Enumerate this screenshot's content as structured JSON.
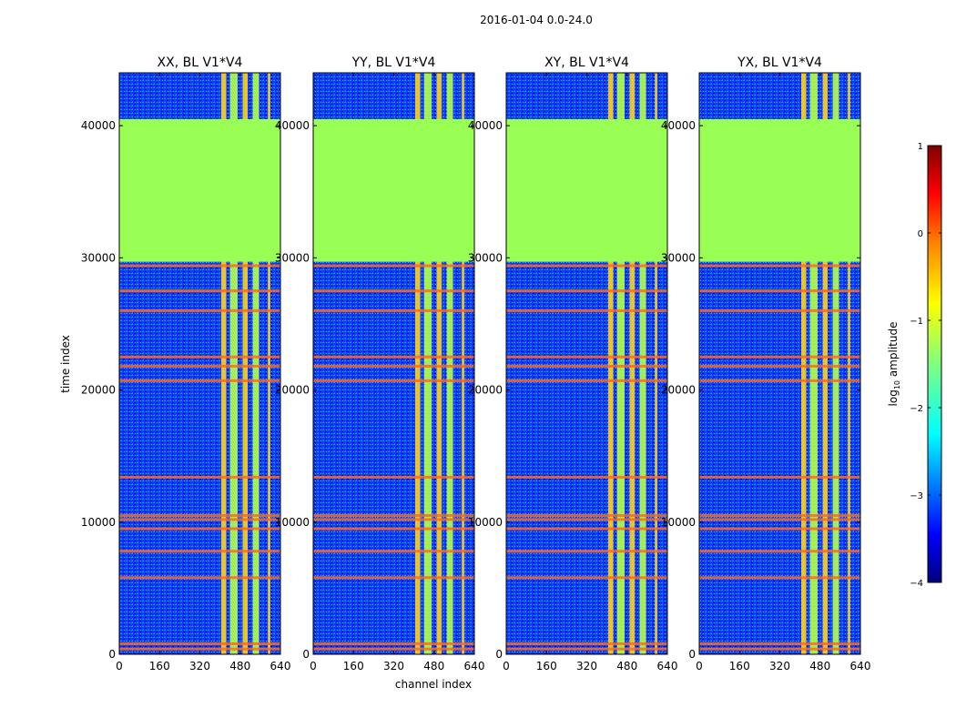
{
  "figure": {
    "suptitle": "2016-01-04 0.0-24.0"
  },
  "colorbar": {
    "label_prefix": "log",
    "label_sub": "10",
    "label_suffix": " amplitude",
    "vmin": -4,
    "vmax": 1,
    "ticks": [
      1,
      0,
      -1,
      -2,
      -3,
      -4
    ],
    "tick_labels": [
      "1",
      "0",
      "−1",
      "−2",
      "−3",
      "−4"
    ],
    "colors": [
      "#00007f",
      "#0000ff",
      "#007fff",
      "#00ffff",
      "#7fff7f",
      "#ffff00",
      "#ff7f00",
      "#ff0000",
      "#7f0000"
    ]
  },
  "chart_data": {
    "type": "heatmap",
    "xlabel": "channel index",
    "ylabel": "time index",
    "xlim": [
      0,
      640
    ],
    "ylim": [
      0,
      44000
    ],
    "xticks": [
      0,
      160,
      320,
      480,
      640
    ],
    "xtick_labels": [
      "0",
      "160",
      "320",
      "480",
      "640"
    ],
    "yticks": [
      0,
      10000,
      20000,
      30000,
      40000
    ],
    "ytick_labels": [
      "0",
      "10000",
      "20000",
      "30000",
      "40000"
    ],
    "value_label": "log10 amplitude",
    "flagged_block": {
      "time_start": 29700,
      "time_end": 40500,
      "value": -1.4,
      "color": "#99ff55"
    },
    "rfi_channel_bands": [
      [
        405,
        425
      ],
      [
        440,
        470
      ],
      [
        490,
        510
      ],
      [
        530,
        555
      ],
      [
        590,
        600
      ]
    ],
    "rfi_time_rows": [
      400,
      800,
      5800,
      7800,
      9500,
      10200,
      10500,
      13400,
      20700,
      21800,
      22500,
      26000,
      27500,
      29400
    ],
    "panels": [
      {
        "name": "xx",
        "title": "XX, BL V1*V4"
      },
      {
        "name": "yy",
        "title": "YY, BL V1*V4"
      },
      {
        "name": "xy",
        "title": "XY, BL V1*V4"
      },
      {
        "name": "yx",
        "title": "YX, BL V1*V4"
      }
    ]
  }
}
